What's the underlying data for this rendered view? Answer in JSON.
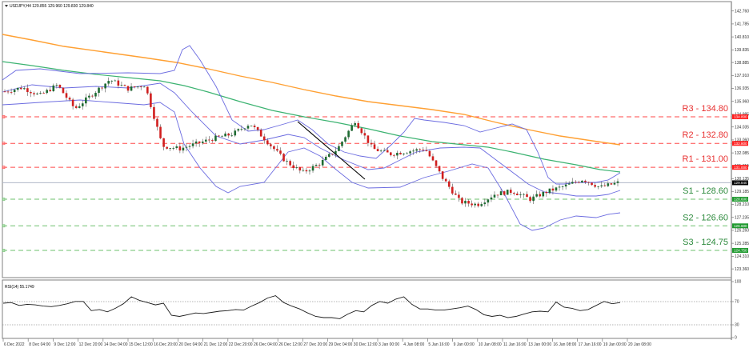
{
  "header": {
    "symbol_label": "USDJPY,H4",
    "ohlc": "129.855 129.960 129.830 129.840",
    "title": "USDJPY,H4  129.855 129.960 129.830 129.840"
  },
  "colors": {
    "background": "#ffffff",
    "frame": "#7f7f7f",
    "bull_candle": "#1e6b32",
    "bear_candle": "#d11f1f",
    "wick": "#555555",
    "bollinger": "#6b6be0",
    "ma_green": "#3cb371",
    "ma_orange": "#ffa033",
    "resistance": "#ff4a4a",
    "support": "#6ec06e",
    "current_price_line": "#b0b8c8",
    "trendline": "#000000",
    "rsi_line": "#1a1a1a",
    "rsi_level": "#9a9a9a"
  },
  "price_axis": {
    "ticks": [
      "142.760",
      "141.785",
      "140.810",
      "139.835",
      "138.885",
      "137.910",
      "136.935",
      "135.960",
      "134.985",
      "134.035",
      "133.060",
      "132.085",
      "131.110",
      "130.135",
      "129.185",
      "128.210",
      "127.235",
      "126.260",
      "125.285",
      "124.310",
      "123.360"
    ],
    "current_price_tag": "129.840",
    "level_tags": {
      "r3": "134.800",
      "r2": "132.800",
      "r1": "131.000",
      "s1": "128.600",
      "s2": "126.600",
      "s3": "124.750"
    }
  },
  "levels": [
    {
      "id": "r3",
      "label": "R3 - 134.80",
      "price": 134.8,
      "type": "resistance"
    },
    {
      "id": "r2",
      "label": "R2 - 132.80",
      "price": 132.8,
      "type": "resistance"
    },
    {
      "id": "r1",
      "label": "R1 - 131.00",
      "price": 131.0,
      "type": "resistance"
    },
    {
      "id": "s1",
      "label": "S1 - 128.60",
      "price": 128.6,
      "type": "support"
    },
    {
      "id": "s2",
      "label": "S2 - 126.60",
      "price": 126.6,
      "type": "support"
    },
    {
      "id": "s3",
      "label": "S3 - 124.75",
      "price": 124.75,
      "type": "support"
    }
  ],
  "rsi": {
    "label": "RSI(14) 55.1749",
    "axis_ticks": [
      "100",
      "70",
      "30",
      "0"
    ],
    "overbought": 70,
    "oversold": 30
  },
  "time_axis": {
    "labels": [
      "6 Dec 2022",
      "8 Dec 04:00",
      "9 Dec 12:00",
      "12 Dec 20:00",
      "14 Dec 04:00",
      "15 Dec 12:00",
      "16 Dec 20:00",
      "20 Dec 04:00",
      "21 Dec 12:00",
      "22 Dec 20:00",
      "26 Dec 04:00",
      "26 Dec 12:00",
      "27 Dec 20:00",
      "29 Dec 04:00",
      "30 Dec 12:00",
      "3 Jan 00:00",
      "4 Jan 08:00",
      "5 Jan 16:00",
      "9 Jan 00:00",
      "10 Jan 08:00",
      "11 Jan 16:00",
      "13 Jan 00:00",
      "16 Jan 08:00",
      "17 Jan 16:00",
      "19 Jan 00:00",
      "20 Jan 08:00"
    ]
  },
  "chart_data": [
    {
      "type": "candlestick",
      "title": "USDJPY,H4",
      "subtitle": "129.855 129.960 129.830 129.840",
      "xlabel": "",
      "ylabel": "",
      "ylim": [
        123.36,
        142.76
      ],
      "grid": false,
      "x": [
        "6 Dec 2022",
        "8 Dec 04:00",
        "9 Dec 12:00",
        "12 Dec 20:00",
        "14 Dec 04:00",
        "15 Dec 12:00",
        "16 Dec 20:00",
        "20 Dec 04:00",
        "21 Dec 12:00",
        "22 Dec 20:00",
        "26 Dec 04:00",
        "26 Dec 12:00",
        "27 Dec 20:00",
        "29 Dec 04:00",
        "30 Dec 12:00",
        "3 Jan 00:00",
        "4 Jan 08:00",
        "5 Jan 16:00",
        "9 Jan 00:00",
        "10 Jan 08:00",
        "11 Jan 16:00",
        "13 Jan 00:00",
        "16 Jan 08:00",
        "17 Jan 16:00",
        "19 Jan 00:00",
        "20 Jan 08:00"
      ],
      "approx_close_path": [
        136.7,
        137.0,
        136.4,
        137.2,
        135.4,
        136.5,
        137.6,
        136.9,
        137.2,
        132.6,
        132.4,
        132.8,
        133.2,
        133.5,
        134.3,
        132.9,
        131.5,
        130.6,
        131.3,
        132.4,
        134.5,
        132.4,
        132.0,
        132.2,
        132.4,
        130.2,
        128.4,
        128.2,
        129.0,
        129.2,
        128.6,
        129.2,
        129.6,
        130.1,
        129.5,
        129.84
      ],
      "series": [
        {
          "name": "MA (green)",
          "approx_values": [
            138.6,
            137.9,
            137.2,
            136.7,
            136.1,
            135.5,
            134.9,
            134.1,
            133.3,
            132.5,
            132.0,
            131.6,
            130.9
          ]
        },
        {
          "name": "MA (orange)",
          "approx_values": [
            140.9,
            140.1,
            139.3,
            138.5,
            137.7,
            136.9,
            136.1,
            135.4,
            134.9,
            134.3,
            133.6,
            133.0,
            132.6
          ]
        },
        {
          "name": "Bollinger upper",
          "approx_values": [
            137.5,
            137.4,
            138.2,
            140.0,
            136.7,
            134.3,
            134.0,
            132.6,
            134.8,
            133.8,
            134.3,
            131.0,
            130.8
          ]
        },
        {
          "name": "Bollinger lower",
          "approx_values": [
            135.1,
            135.3,
            134.4,
            132.2,
            132.2,
            131.7,
            130.5,
            130.6,
            129.4,
            127.7,
            126.9,
            127.5,
            127.3
          ]
        }
      ],
      "annotations": [
        "R3 - 134.80",
        "R2 - 132.80",
        "R1 - 131.00",
        "S1 - 128.60",
        "S2 - 126.60",
        "S3 - 124.75",
        "trendline 27 Dec 20:00 (134.3) to 3 Jan 00:00 (130.5)"
      ],
      "legend": "none"
    },
    {
      "type": "line",
      "title": "RSI(14) 55.1749",
      "ylim": [
        0,
        100
      ],
      "levels": [
        70,
        30
      ],
      "approx_values": [
        57,
        58,
        53,
        55,
        54,
        52,
        51,
        53,
        56,
        60,
        60,
        44,
        46,
        42,
        48,
        56,
        68,
        62,
        58,
        54,
        57,
        36,
        34,
        37,
        40,
        39,
        41,
        43,
        44,
        46,
        45,
        52,
        58,
        66,
        70,
        58,
        52,
        47,
        40,
        34,
        32,
        32,
        30,
        38,
        44,
        42,
        53,
        60,
        57,
        64,
        68,
        55,
        47,
        47,
        45,
        45,
        47,
        49,
        52,
        46,
        37,
        34,
        36,
        32,
        34,
        38,
        42,
        43,
        42,
        59,
        50,
        48,
        44,
        46,
        53,
        60,
        56,
        58
      ]
    }
  ]
}
